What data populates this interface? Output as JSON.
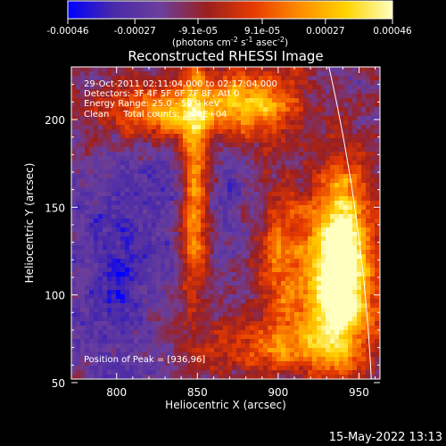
{
  "colorbar": {
    "ticks": [
      "-0.00046",
      "-0.00027",
      "-9.1e-05",
      "9.1e-05",
      "0.00027",
      "0.00046"
    ],
    "values": [
      -0.00046,
      -0.00027,
      -9.1e-05,
      9.1e-05,
      0.00027,
      0.00046
    ],
    "range": [
      -0.00046,
      0.00046
    ],
    "units_main": "(photons cm",
    "units_exp1": "-2",
    "units_mid": " s",
    "units_exp2": "-1",
    "units_tail": " asec",
    "units_exp3": "-2",
    "units_close": ")"
  },
  "chart_data": {
    "type": "heatmap",
    "title": "Reconstructed RHESSI Image",
    "xlabel": "Heliocentric X (arcsec)",
    "ylabel": "Heliocentric Y (arcsec)",
    "xlim": [
      772,
      963
    ],
    "ylim": [
      52,
      230
    ],
    "xticks": [
      800,
      850,
      900,
      950
    ],
    "yticks": [
      50,
      100,
      150,
      200
    ],
    "xtick_labels": [
      "800",
      "850",
      "900",
      "950"
    ],
    "ytick_labels": [
      "50",
      "100",
      "150",
      "200"
    ],
    "colormap": [
      "#0000ff",
      "#4a2aa8",
      "#6b3f9c",
      "#9a1f1f",
      "#e63a00",
      "#ff8c00",
      "#ffd400",
      "#ffffc0"
    ],
    "limb_color": "#ffffff",
    "annotations": [
      "29-Oct-2011 02:11:04.000 to 02:17:04.000",
      "Detectors: 3F 4F 5F 6F 7F 8F, Att 0",
      "Energy Range: 25.0 - 50.0 keV",
      "Clean     Total counts: 1.09E+04"
    ],
    "peak_label": "Position of Peak = [936,96]",
    "peak": [
      936,
      96
    ],
    "sources": [
      {
        "x": 936,
        "y": 100,
        "sx": 16,
        "sy": 32,
        "amp": 1.0
      },
      {
        "x": 940,
        "y": 135,
        "sx": 12,
        "sy": 30,
        "amp": 0.75
      },
      {
        "x": 848,
        "y": 160,
        "sx": 6,
        "sy": 45,
        "amp": 0.7
      },
      {
        "x": 830,
        "y": 205,
        "sx": 30,
        "sy": 12,
        "amp": 0.65
      },
      {
        "x": 885,
        "y": 210,
        "sx": 20,
        "sy": 14,
        "amp": 0.7
      },
      {
        "x": 900,
        "y": 120,
        "sx": 10,
        "sy": 30,
        "amp": 0.5
      },
      {
        "x": 895,
        "y": 70,
        "sx": 30,
        "sy": 10,
        "amp": 0.45
      }
    ],
    "voids": [
      {
        "x": 800,
        "y": 110,
        "sx": 20,
        "sy": 50,
        "amp": 0.8
      },
      {
        "x": 870,
        "y": 160,
        "sx": 10,
        "sy": 25,
        "amp": 0.5
      },
      {
        "x": 830,
        "y": 160,
        "sx": 12,
        "sy": 18,
        "amp": 0.45
      }
    ]
  },
  "footer": {
    "timestamp": "15-May-2022 13:13"
  }
}
